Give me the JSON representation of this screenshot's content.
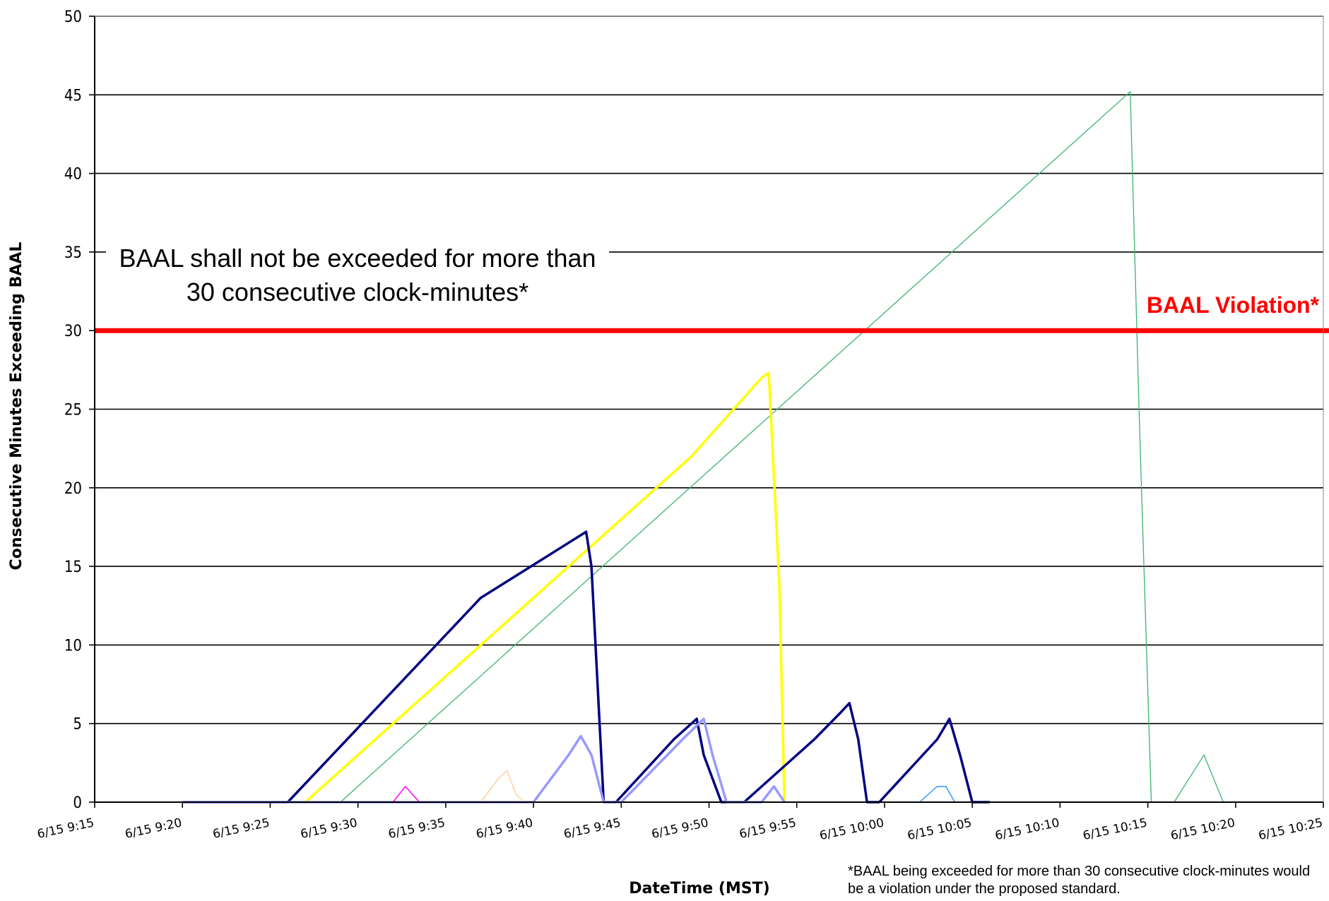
{
  "chart_data": {
    "type": "line",
    "ylabel": "Consecutive Minutes Exceeding BAAL",
    "xlabel": "DateTime (MST)",
    "ylim": [
      0,
      50
    ],
    "yticks": [
      0,
      5,
      10,
      15,
      20,
      25,
      30,
      35,
      40,
      45,
      50
    ],
    "x_range": [
      "6/15 9:15",
      "6/15 10:25"
    ],
    "xticks": [
      "6/15 9:15",
      "6/15 9:20",
      "6/15 9:25",
      "6/15 9:30",
      "6/15 9:35",
      "6/15 9:40",
      "6/15 9:45",
      "6/15 9:50",
      "6/15 9:55",
      "6/15 10:00",
      "6/15 10:05",
      "6/15 10:10",
      "6/15 10:15",
      "6/15 10:20",
      "6/15 10:25"
    ],
    "grid": "horizontal",
    "threshold": {
      "value": 30,
      "label": "BAAL Violation*",
      "color": "#ff0000"
    },
    "annotation": "BAAL shall not be exceeded for more than 30 consecutive clock-minutes*",
    "footnote": "*BAAL being exceeded for more than 30 consecutive clock-minutes would be a violation under the proposed standard.",
    "series": [
      {
        "color": "#3cb371",
        "width": 1.3,
        "points": [
          [
            "9:20",
            0
          ],
          [
            "9:29",
            0
          ],
          [
            "10:14",
            45.2
          ],
          [
            "10:14.5",
            25
          ],
          [
            "10:15.2",
            0
          ],
          [
            "10:16.5",
            0
          ],
          [
            "10:18.2",
            3
          ],
          [
            "10:19.3",
            0
          ],
          [
            "10:20",
            0
          ]
        ]
      },
      {
        "color": "#ffff00",
        "width": 3.5,
        "points": [
          [
            "9:27",
            0
          ],
          [
            "9:49",
            22
          ],
          [
            "9:53",
            27
          ],
          [
            "9:53.4",
            27.3
          ],
          [
            "9:54",
            14
          ],
          [
            "9:54.3",
            0
          ]
        ]
      },
      {
        "color": "#000080",
        "width": 3.5,
        "points": [
          [
            "9:20",
            0
          ],
          [
            "9:26",
            0
          ],
          [
            "9:37",
            13
          ],
          [
            "9:42",
            16.5
          ],
          [
            "9:43",
            17.2
          ],
          [
            "9:43.3",
            15
          ],
          [
            "9:44",
            0
          ],
          [
            "9:44.7",
            0
          ],
          [
            "9:48",
            4
          ],
          [
            "9:49.3",
            5.3
          ],
          [
            "9:49.7",
            3
          ],
          [
            "9:50.7",
            0
          ],
          [
            "9:52",
            0
          ],
          [
            "9:56",
            4
          ],
          [
            "9:57.5",
            5.7
          ],
          [
            "9:58",
            6.3
          ],
          [
            "9:58.5",
            4
          ],
          [
            "9:59",
            0
          ],
          [
            "9:59.7",
            0
          ],
          [
            "10:03",
            4
          ],
          [
            "10:03.7",
            5.3
          ],
          [
            "10:04.3",
            3
          ],
          [
            "10:05",
            0
          ],
          [
            "10:06",
            0
          ]
        ]
      },
      {
        "color": "#9999ff",
        "width": 3.5,
        "points": [
          [
            "9:20",
            0
          ],
          [
            "9:40",
            0
          ],
          [
            "9:42",
            3
          ],
          [
            "9:42.7",
            4.2
          ],
          [
            "9:43.3",
            3
          ],
          [
            "9:44",
            0
          ],
          [
            "9:45",
            0
          ],
          [
            "9:48.5",
            4
          ],
          [
            "9:49.7",
            5.3
          ],
          [
            "9:50.2",
            3
          ],
          [
            "9:51",
            0
          ],
          [
            "9:53",
            0
          ],
          [
            "9:53.7",
            1
          ],
          [
            "9:54.3",
            0
          ]
        ]
      },
      {
        "color": "#ff00ff",
        "width": 1.5,
        "points": [
          [
            "9:32",
            0
          ],
          [
            "9:32.7",
            1
          ],
          [
            "9:33.5",
            0
          ]
        ]
      },
      {
        "color": "#ffcc99",
        "width": 1.5,
        "points": [
          [
            "9:37",
            0
          ],
          [
            "9:38",
            1.5
          ],
          [
            "9:38.5",
            2
          ],
          [
            "9:39",
            0.5
          ],
          [
            "9:39.5",
            0
          ]
        ]
      },
      {
        "color": "#3399ff",
        "width": 1.5,
        "points": [
          [
            "10:02",
            0
          ],
          [
            "10:03",
            1
          ],
          [
            "10:03.5",
            1
          ],
          [
            "10:04",
            0
          ]
        ]
      }
    ]
  }
}
